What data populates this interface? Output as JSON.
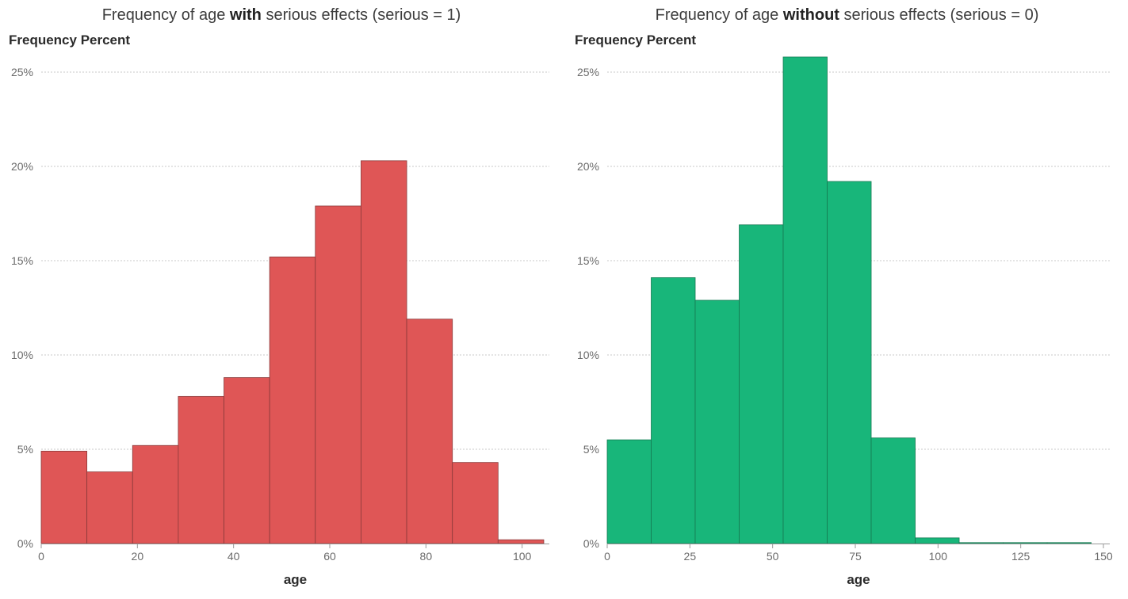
{
  "chart_data": [
    {
      "type": "bar",
      "title_parts": [
        "Frequency of age ",
        "with",
        " serious effects (serious = 1)"
      ],
      "ylabel": "Frequency Percent",
      "xlabel": "age",
      "x_ticks": [
        0,
        20,
        40,
        60,
        80,
        100
      ],
      "x_tick_labels": [
        "0",
        "20",
        "40",
        "60",
        "80",
        "100"
      ],
      "y_ticks": [
        0,
        5,
        10,
        15,
        20,
        25
      ],
      "y_tick_labels": [
        "0%",
        "5%",
        "10%",
        "15%",
        "20%",
        "25%"
      ],
      "xlim": [
        0,
        105
      ],
      "ylim": [
        0,
        25
      ],
      "grid": true,
      "color": "#df5656",
      "edge_color": "#8a3a3a",
      "bins": [
        {
          "start": 0,
          "end": 9.5,
          "value": 4.9
        },
        {
          "start": 9.5,
          "end": 19,
          "value": 3.8
        },
        {
          "start": 19,
          "end": 28.5,
          "value": 5.2
        },
        {
          "start": 28.5,
          "end": 38,
          "value": 7.8
        },
        {
          "start": 38,
          "end": 47.5,
          "value": 8.8
        },
        {
          "start": 47.5,
          "end": 57,
          "value": 15.2
        },
        {
          "start": 57,
          "end": 66.5,
          "value": 17.9
        },
        {
          "start": 66.5,
          "end": 76,
          "value": 20.3
        },
        {
          "start": 76,
          "end": 85.5,
          "value": 11.9
        },
        {
          "start": 85.5,
          "end": 95,
          "value": 4.3
        },
        {
          "start": 95,
          "end": 104.5,
          "value": 0.2
        }
      ]
    },
    {
      "type": "bar",
      "title_parts": [
        "Frequency of age ",
        "without",
        " serious effects (serious = 0)"
      ],
      "ylabel": "Frequency Percent",
      "xlabel": "age",
      "x_ticks": [
        0,
        25,
        50,
        75,
        100,
        125,
        150
      ],
      "x_tick_labels": [
        "0",
        "25",
        "50",
        "75",
        "100",
        "125",
        "150"
      ],
      "y_ticks": [
        0,
        5,
        10,
        15,
        20,
        25
      ],
      "y_tick_labels": [
        "0%",
        "5%",
        "10%",
        "15%",
        "20%",
        "25%"
      ],
      "xlim": [
        0,
        150
      ],
      "ylim": [
        0,
        25
      ],
      "grid": true,
      "color": "#18b67a",
      "edge_color": "#167a52",
      "bins": [
        {
          "start": 0,
          "end": 13.3,
          "value": 5.5
        },
        {
          "start": 13.3,
          "end": 26.6,
          "value": 14.1
        },
        {
          "start": 26.6,
          "end": 39.9,
          "value": 12.9
        },
        {
          "start": 39.9,
          "end": 53.2,
          "value": 16.9
        },
        {
          "start": 53.2,
          "end": 66.5,
          "value": 25.8
        },
        {
          "start": 66.5,
          "end": 79.8,
          "value": 19.2
        },
        {
          "start": 79.8,
          "end": 93.1,
          "value": 5.6
        },
        {
          "start": 93.1,
          "end": 106.4,
          "value": 0.3
        },
        {
          "start": 106.4,
          "end": 119.7,
          "value": 0.05
        },
        {
          "start": 119.7,
          "end": 133,
          "value": 0.05
        },
        {
          "start": 133,
          "end": 146.3,
          "value": 0.05
        }
      ]
    }
  ]
}
